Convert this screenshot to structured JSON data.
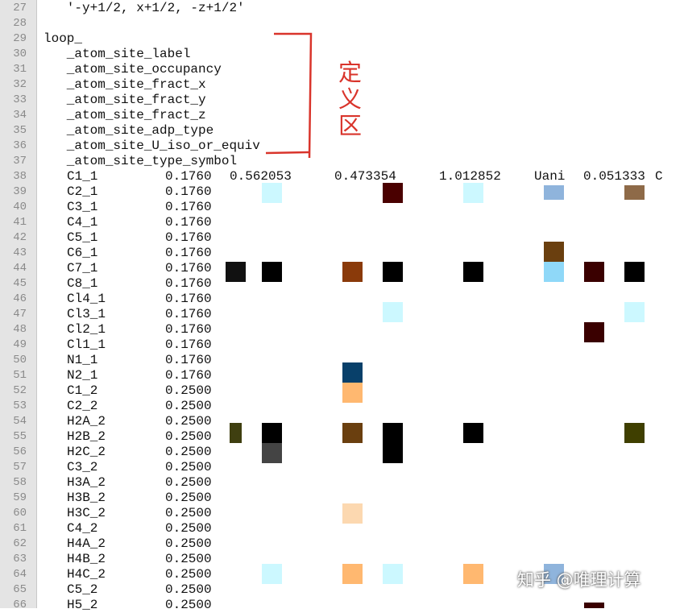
{
  "editor": {
    "lines": [
      {
        "n": 27,
        "text": "   '-y+1/2, x+1/2, -z+1/2'"
      },
      {
        "n": 28
      },
      {
        "n": 29,
        "text": "loop_"
      },
      {
        "n": 30,
        "text": "   _atom_site_label"
      },
      {
        "n": 31,
        "text": "   _atom_site_occupancy"
      },
      {
        "n": 32,
        "text": "   _atom_site_fract_x"
      },
      {
        "n": 33,
        "text": "   _atom_site_fract_y"
      },
      {
        "n": 34,
        "text": "   _atom_site_fract_z"
      },
      {
        "n": 35,
        "text": "   _atom_site_adp_type"
      },
      {
        "n": 36,
        "text": "   _atom_site_U_iso_or_equiv"
      },
      {
        "n": 37,
        "text": "   _atom_site_type_symbol"
      },
      {
        "n": 38,
        "cells": [
          "C1_1",
          "0.1760",
          "0.562053",
          "0.473354",
          "1.012852",
          "Uani",
          "0.051333",
          "C"
        ]
      },
      {
        "n": 39,
        "cells": [
          "C2_1",
          "0.1760"
        ]
      },
      {
        "n": 40,
        "cells": [
          "C3_1",
          "0.1760"
        ]
      },
      {
        "n": 41,
        "cells": [
          "C4_1",
          "0.1760"
        ]
      },
      {
        "n": 42,
        "cells": [
          "C5_1",
          "0.1760"
        ]
      },
      {
        "n": 43,
        "cells": [
          "C6_1",
          "0.1760"
        ]
      },
      {
        "n": 44,
        "cells": [
          "C7_1",
          "0.1760"
        ]
      },
      {
        "n": 45,
        "cells": [
          "C8_1",
          "0.1760"
        ]
      },
      {
        "n": 46,
        "cells": [
          "Cl4_1",
          "0.1760"
        ]
      },
      {
        "n": 47,
        "cells": [
          "Cl3_1",
          "0.1760"
        ]
      },
      {
        "n": 48,
        "cells": [
          "Cl2_1",
          "0.1760"
        ]
      },
      {
        "n": 49,
        "cells": [
          "Cl1_1",
          "0.1760"
        ]
      },
      {
        "n": 50,
        "cells": [
          "N1_1",
          "0.1760"
        ]
      },
      {
        "n": 51,
        "cells": [
          "N2_1",
          "0.1760"
        ]
      },
      {
        "n": 52,
        "cells": [
          "C1_2",
          "0.2500"
        ]
      },
      {
        "n": 53,
        "cells": [
          "C2_2",
          "0.2500"
        ]
      },
      {
        "n": 54,
        "cells": [
          "H2A_2",
          "0.2500"
        ]
      },
      {
        "n": 55,
        "cells": [
          "H2B_2",
          "0.2500"
        ]
      },
      {
        "n": 56,
        "cells": [
          "H2C_2",
          "0.2500"
        ]
      },
      {
        "n": 57,
        "cells": [
          "C3_2",
          "0.2500"
        ]
      },
      {
        "n": 58,
        "cells": [
          "H3A_2",
          "0.2500"
        ]
      },
      {
        "n": 59,
        "cells": [
          "H3B_2",
          "0.2500"
        ]
      },
      {
        "n": 60,
        "cells": [
          "H3C_2",
          "0.2500"
        ]
      },
      {
        "n": 61,
        "cells": [
          "C4_2",
          "0.2500"
        ]
      },
      {
        "n": 62,
        "cells": [
          "H4A_2",
          "0.2500"
        ]
      },
      {
        "n": 63,
        "cells": [
          "H4B_2",
          "0.2500"
        ]
      },
      {
        "n": 64,
        "cells": [
          "H4C_2",
          "0.2500"
        ]
      },
      {
        "n": 65,
        "cells": [
          "C5_2",
          "0.2500"
        ]
      },
      {
        "n": 66,
        "cells": [
          "H5_2",
          "0.2500"
        ]
      }
    ]
  },
  "annotation": "定义区",
  "watermark": "知乎 @唯理计算"
}
